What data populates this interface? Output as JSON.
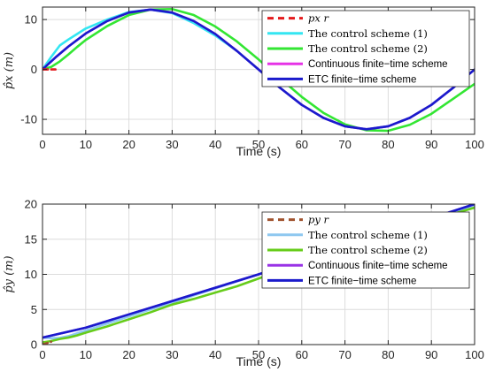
{
  "chart_data": [
    {
      "type": "line",
      "xlabel": "Time (s)",
      "ylabel": "p̂x (m)",
      "xlim": [
        0,
        100
      ],
      "ylim": [
        -13,
        12.5
      ],
      "xticks": [
        0,
        10,
        20,
        30,
        40,
        50,
        60,
        70,
        80,
        90,
        100
      ],
      "yticks": [
        -10,
        0,
        10
      ],
      "grid": true,
      "legend_position": "top-right",
      "series": [
        {
          "name": "px r",
          "color": "#e41a1c",
          "dash": "dashed",
          "x": [
            0,
            3
          ],
          "y": [
            0,
            0
          ]
        },
        {
          "name": "The control scheme (1)",
          "color": "#33e6f2",
          "x": [
            0,
            2,
            4,
            6,
            8,
            10,
            15,
            20,
            25,
            30,
            35,
            40,
            45,
            50,
            55,
            60,
            65,
            70,
            75,
            80,
            85,
            90,
            95,
            100
          ],
          "y": [
            0,
            2.5,
            4.8,
            6.0,
            7.1,
            8.2,
            10.0,
            11.5,
            12.0,
            11.3,
            9.3,
            6.8,
            3.7,
            0,
            -3.7,
            -7.1,
            -9.7,
            -11.4,
            -12.0,
            -11.4,
            -9.7,
            -7.1,
            -3.7,
            0
          ]
        },
        {
          "name": "The control scheme (2)",
          "color": "#33e633",
          "x": [
            0,
            2,
            4,
            6,
            8,
            10,
            15,
            20,
            25,
            30,
            35,
            40,
            45,
            50,
            55,
            60,
            65,
            70,
            75,
            80,
            85,
            90,
            95,
            100
          ],
          "y": [
            0,
            0.5,
            1.6,
            3.0,
            4.5,
            5.9,
            8.7,
            10.9,
            12.0,
            12.1,
            10.9,
            8.6,
            5.6,
            2.0,
            -1.8,
            -5.5,
            -8.7,
            -11.0,
            -12.2,
            -12.3,
            -11.1,
            -8.9,
            -5.9,
            -2.9
          ]
        },
        {
          "name": "Continuous finite−time scheme",
          "color": "#e632e6",
          "x": [
            0,
            3,
            6,
            10,
            15,
            20,
            25,
            30,
            35,
            40,
            45,
            50,
            55,
            60,
            65,
            70,
            75,
            80,
            85,
            90,
            95,
            100
          ],
          "y": [
            0,
            2.4,
            4.6,
            7.2,
            9.7,
            11.4,
            12.0,
            11.4,
            9.7,
            7.1,
            3.7,
            0,
            -3.7,
            -7.1,
            -9.7,
            -11.4,
            -12.0,
            -11.4,
            -9.7,
            -7.1,
            -3.7,
            0
          ]
        },
        {
          "name": "ETC finite−time scheme",
          "color": "#1a1acc",
          "x": [
            0,
            3,
            6,
            10,
            15,
            20,
            25,
            30,
            35,
            40,
            45,
            50,
            55,
            60,
            65,
            70,
            75,
            80,
            85,
            90,
            95,
            100
          ],
          "y": [
            0,
            2.4,
            4.6,
            7.2,
            9.7,
            11.4,
            12.0,
            11.4,
            9.7,
            7.1,
            3.7,
            0,
            -3.7,
            -7.1,
            -9.7,
            -11.4,
            -12.0,
            -11.4,
            -9.7,
            -7.1,
            -3.7,
            0
          ]
        }
      ]
    },
    {
      "type": "line",
      "xlabel": "Time (s)",
      "ylabel": "p̂y (m)",
      "xlim": [
        0,
        100
      ],
      "ylim": [
        0,
        20
      ],
      "xticks": [
        0,
        10,
        20,
        30,
        40,
        50,
        60,
        70,
        80,
        90,
        100
      ],
      "yticks": [
        0,
        5,
        10,
        15,
        20
      ],
      "grid": true,
      "legend_position": "top-right",
      "series": [
        {
          "name": "py r",
          "color": "#a0522d",
          "dash": "dashed",
          "x": [
            0,
            2
          ],
          "y": [
            0,
            0.4
          ]
        },
        {
          "name": "The control scheme (1)",
          "color": "#8ec8f0",
          "x": [
            0,
            2,
            4,
            6,
            8,
            10,
            20,
            30,
            40,
            50,
            60,
            70,
            80,
            90,
            100
          ],
          "y": [
            1.0,
            0.9,
            0.95,
            1.2,
            1.6,
            2.0,
            4.0,
            6.0,
            8.0,
            10.0,
            12.0,
            14.0,
            16.0,
            18.0,
            19.6
          ]
        },
        {
          "name": "The control scheme (2)",
          "color": "#66cc1a",
          "x": [
            0,
            2,
            4,
            6,
            8,
            10,
            15,
            20,
            25,
            30,
            35,
            40,
            45,
            50,
            60,
            70,
            80,
            90,
            100
          ],
          "y": [
            0.3,
            0.5,
            0.8,
            1.0,
            1.3,
            1.7,
            2.6,
            3.6,
            4.6,
            5.7,
            6.5,
            7.4,
            8.3,
            9.4,
            11.6,
            13.7,
            15.7,
            17.7,
            19.5
          ]
        },
        {
          "name": "Continuous finite−time scheme",
          "color": "#9933e6",
          "x": [
            0,
            10,
            20,
            30,
            40,
            50,
            60,
            70,
            80,
            90,
            100
          ],
          "y": [
            1.0,
            2.4,
            4.3,
            6.2,
            8.1,
            10.0,
            12.0,
            14.0,
            16.0,
            18.0,
            20.0
          ]
        },
        {
          "name": "ETC finite−time scheme",
          "color": "#1a1acc",
          "x": [
            0,
            10,
            20,
            30,
            40,
            50,
            60,
            70,
            80,
            90,
            100
          ],
          "y": [
            1.0,
            2.4,
            4.3,
            6.2,
            8.1,
            10.0,
            12.0,
            14.0,
            16.0,
            18.0,
            20.0
          ]
        }
      ]
    }
  ]
}
